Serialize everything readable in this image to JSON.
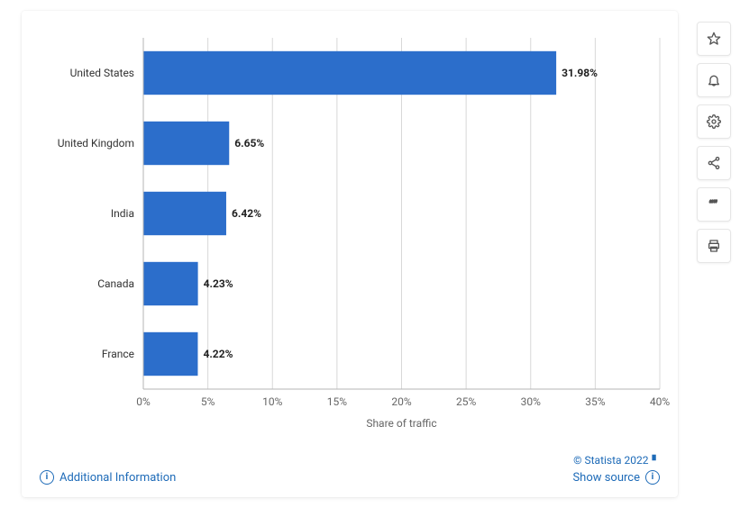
{
  "chart": {
    "type": "bar-horizontal",
    "categories": [
      "United States",
      "United Kingdom",
      "India",
      "Canada",
      "France"
    ],
    "values": [
      31.98,
      6.65,
      6.42,
      4.23,
      4.22
    ],
    "value_labels": [
      "31.98%",
      "6.65%",
      "6.42%",
      "4.23%",
      "4.22%"
    ],
    "bar_color": "#2c6ecb",
    "background_color": "#ffffff",
    "grid_color": "#d8d8d8",
    "axis_color": "#b5b5b5",
    "x_title": "Share of traffic",
    "xlim": [
      0,
      40
    ],
    "xtick_step": 5,
    "xtick_labels": [
      "0%",
      "5%",
      "10%",
      "15%",
      "20%",
      "25%",
      "30%",
      "35%",
      "40%"
    ],
    "label_fontsize": 12,
    "value_fontsize": 12,
    "value_fontweight": 700,
    "bar_height_ratio": 0.62
  },
  "footer": {
    "additional_info": "Additional Information",
    "copyright": "© Statista 2022",
    "show_source": "Show source"
  },
  "toolbar": {
    "favorite": "star-icon",
    "notify": "bell-icon",
    "settings": "gear-icon",
    "share": "share-icon",
    "cite": "quote-icon",
    "print": "print-icon"
  }
}
